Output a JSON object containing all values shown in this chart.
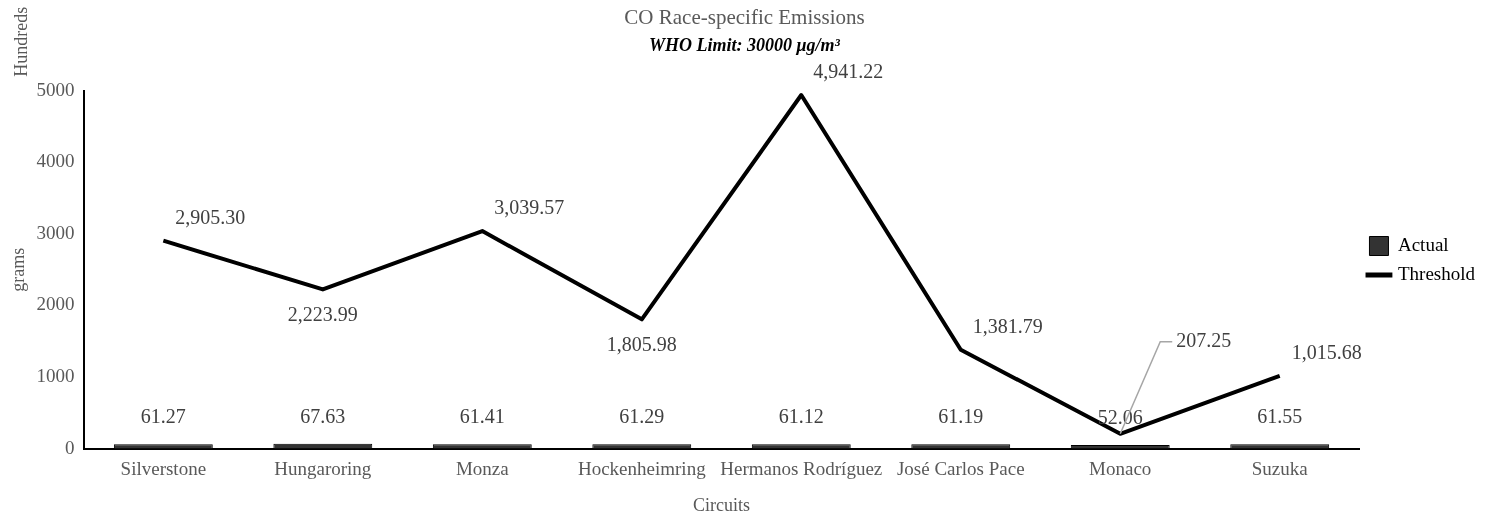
{
  "chart_data": {
    "type": "bar",
    "title": "CO Race-specific Emissions",
    "subtitle": "WHO Limit: 30000 μg/m³",
    "xlabel": "Circuits",
    "ylabel": "grams",
    "annotations": [
      "Hundreds"
    ],
    "categories": [
      "Silverstone",
      "Hungaroring",
      "Monza",
      "Hockenheimring",
      "Hermanos Rodríguez",
      "José Carlos Pace",
      "Monaco",
      "Suzuka"
    ],
    "series": [
      {
        "name": "Actual",
        "color": "#333333",
        "values": [
          61.27,
          67.63,
          61.41,
          61.29,
          61.12,
          61.19,
          52.06,
          61.55
        ],
        "value_labels": [
          "61.27",
          "67.63",
          "61.41",
          "61.29",
          "61.12",
          "61.19",
          "52.06",
          "61.55"
        ]
      },
      {
        "name": "Threshold",
        "type": "line",
        "color": "#000000",
        "values": [
          2905.3,
          2223.99,
          3039.57,
          1805.98,
          4941.22,
          1381.79,
          207.25,
          1015.68
        ],
        "value_labels": [
          "2,905.30",
          "2,223.99",
          "3,039.57",
          "1,805.98",
          "4,941.22",
          "1,381.79",
          "207.25",
          "1,015.68"
        ]
      }
    ],
    "ylim": [
      0,
      5000
    ],
    "yticks": [
      0,
      1000,
      2000,
      3000,
      4000,
      5000
    ],
    "grid": false,
    "legend": "right",
    "marker": "none",
    "line_style": "solid"
  }
}
